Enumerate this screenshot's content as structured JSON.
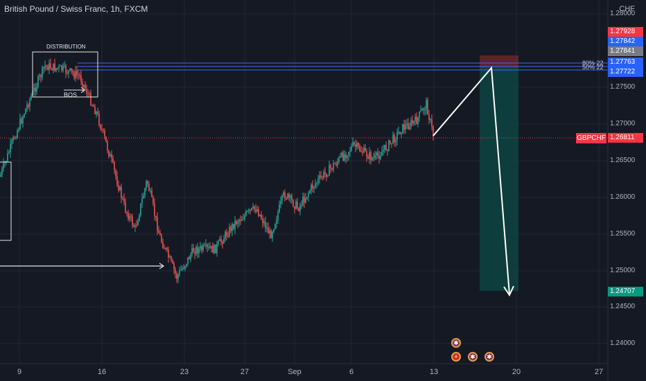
{
  "header": {
    "title": "British Pound / Swiss Franc, 1h, FXCM",
    "currency": "CHF"
  },
  "y_axis": {
    "ticks": [
      "1.28000",
      "1.27500",
      "1.27000",
      "1.26500",
      "1.26000",
      "1.25500",
      "1.25000",
      "1.24500",
      "1.24000"
    ]
  },
  "price_badges": [
    {
      "label": "1.27928",
      "color": "#f23645"
    },
    {
      "label": "1.27842",
      "color": "#2962ff"
    },
    {
      "label": "1.27841",
      "color": "#787b86"
    },
    {
      "label": "1.27763",
      "color": "#2962ff"
    },
    {
      "label": "1.27722",
      "color": "#2962ff"
    },
    {
      "label": "1.24707",
      "color": "#089981"
    }
  ],
  "current_price": {
    "symbol": "GBPCHF",
    "value": "1.26811",
    "color": "#f23645"
  },
  "fib_labels": [
    "80% 22",
    "50% 22"
  ],
  "annotations": {
    "distribution": "DISTRIBUTION",
    "bos": "BOS"
  },
  "x_axis": {
    "ticks": [
      "9",
      "16",
      "23",
      "27",
      "Sep",
      "6",
      "13",
      "20",
      "27"
    ]
  },
  "colors": {
    "up": "#26a69a",
    "down": "#ef5350",
    "background": "#151924"
  },
  "events": [
    "uk-flag-icon",
    "swiss-flag-icon",
    "uk-flag-icon",
    "uk-flag-icon"
  ]
}
